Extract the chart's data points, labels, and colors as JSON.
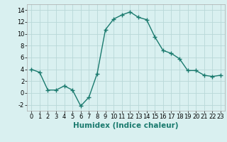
{
  "x": [
    0,
    1,
    2,
    3,
    4,
    5,
    6,
    7,
    8,
    9,
    10,
    11,
    12,
    13,
    14,
    15,
    16,
    17,
    18,
    19,
    20,
    21,
    22,
    23
  ],
  "y": [
    4,
    3.5,
    0.5,
    0.5,
    1.2,
    0.5,
    -2.2,
    -0.7,
    3.3,
    10.7,
    12.5,
    13.2,
    13.7,
    12.8,
    12.4,
    9.5,
    7.2,
    6.7,
    5.8,
    3.8,
    3.8,
    3.0,
    2.8,
    3.0
  ],
  "line_color": "#1a7a6e",
  "marker": "+",
  "marker_size": 4,
  "bg_color": "#d9f0f0",
  "grid_color": "#b8d8d8",
  "xlabel": "Humidex (Indice chaleur)",
  "xlabel_fontsize": 7.5,
  "xlim": [
    -0.5,
    23.5
  ],
  "ylim": [
    -3,
    15
  ],
  "yticks": [
    -2,
    0,
    2,
    4,
    6,
    8,
    10,
    12,
    14
  ],
  "xticks": [
    0,
    1,
    2,
    3,
    4,
    5,
    6,
    7,
    8,
    9,
    10,
    11,
    12,
    13,
    14,
    15,
    16,
    17,
    18,
    19,
    20,
    21,
    22,
    23
  ],
  "tick_fontsize": 6,
  "linewidth": 1.0
}
